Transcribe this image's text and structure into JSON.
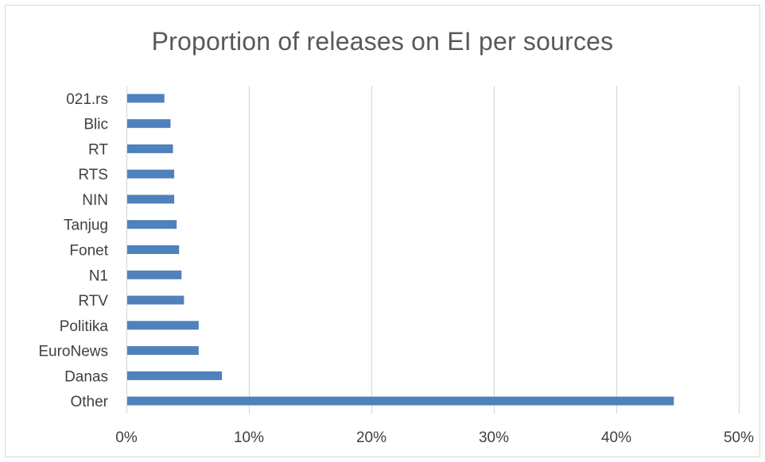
{
  "chart_data": {
    "type": "bar",
    "orientation": "horizontal",
    "title": "Proportion of releases on EI per sources",
    "categories": [
      "021.rs",
      "Blic",
      "RT",
      "RTS",
      "NIN",
      "Tanjug",
      "Fonet",
      "N1",
      "RTV",
      "Politika",
      "EuroNews",
      "Danas",
      "Other"
    ],
    "values": [
      0.031,
      0.036,
      0.038,
      0.039,
      0.039,
      0.041,
      0.043,
      0.045,
      0.047,
      0.059,
      0.059,
      0.078,
      0.447
    ],
    "xlim": [
      0,
      0.5
    ],
    "x_ticks": [
      0,
      0.1,
      0.2,
      0.3,
      0.4,
      0.5
    ],
    "x_tick_labels": [
      "0%",
      "10%",
      "20%",
      "30%",
      "40%",
      "50%"
    ],
    "xlabel": "",
    "ylabel": "",
    "grid": "vertical",
    "legend": "none",
    "bar_color": "#4f81bd",
    "grid_color": "#d9d9d9"
  }
}
